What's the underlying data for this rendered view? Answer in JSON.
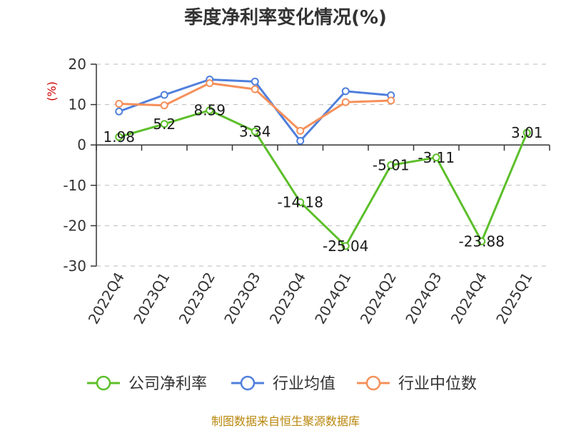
{
  "chart_data": {
    "type": "line",
    "title": "季度净利率变化情况(%)",
    "ylabel": "(%)",
    "xlabel": "",
    "ylim": [
      -30,
      20
    ],
    "yticks": [
      20,
      10,
      0,
      -10,
      -20,
      -30
    ],
    "grid": true,
    "legend_position": "bottom",
    "categories": [
      "2022Q4",
      "2023Q1",
      "2023Q2",
      "2023Q3",
      "2023Q4",
      "2024Q1",
      "2024Q2",
      "2024Q3",
      "2024Q4",
      "2025Q1"
    ],
    "series": [
      {
        "name": "公司净利率",
        "color": "#5cbf2a",
        "values": [
          1.98,
          5.2,
          8.59,
          3.34,
          -14.18,
          -25.04,
          -5.01,
          -3.11,
          -23.88,
          3.01
        ],
        "labels": [
          "1.98",
          "5.2",
          "8.59",
          "3.34",
          "-14.18",
          "-25.04",
          "-5.01",
          "-3.11",
          "-23.88",
          "3.01"
        ]
      },
      {
        "name": "行业均值",
        "color": "#4f7fdc",
        "values": [
          8.3,
          12.4,
          16.2,
          15.7,
          1.0,
          13.3,
          12.3,
          null,
          null,
          null
        ]
      },
      {
        "name": "行业中位数",
        "color": "#f5905a",
        "values": [
          10.2,
          9.8,
          15.3,
          13.8,
          3.5,
          10.6,
          11.0,
          null,
          null,
          null
        ]
      }
    ]
  },
  "source_text": "制图数据来自恒生聚源数据库"
}
